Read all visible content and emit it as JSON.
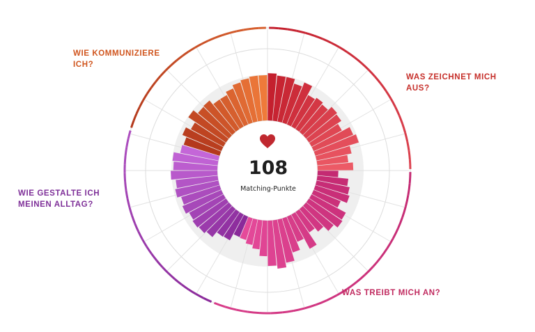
{
  "center": {
    "score": "108",
    "score_label": "Matching-Punkte",
    "icon": "heart-icon",
    "icon_color": "#c0282f"
  },
  "categories": [
    {
      "label": "WAS ZEICHNET MICH AUS?",
      "color": "#c62f2a"
    },
    {
      "label": "WAS TREIBT MICH AN?",
      "color": "#c02a5f"
    },
    {
      "label": "WIE GESTALTE ICH MEINEN ALLTAG?",
      "color": "#7e2f98"
    },
    {
      "label": "WIE KOMMUNIZIERE ICH?",
      "color": "#d0551e"
    }
  ],
  "chart_data": {
    "type": "radial-bar",
    "title": "",
    "grid": true,
    "groups": [
      {
        "name": "WAS ZEICHNET MICH AUS?",
        "color_from": "#c4202e",
        "color_to": "#ec5a66",
        "values": [
          0.73,
          0.7,
          0.7,
          0.63,
          0.7,
          0.55,
          0.58,
          0.55,
          0.62,
          0.6,
          0.53,
          0.66,
          0.7,
          0.55,
          0.48,
          0.55
        ]
      },
      {
        "name": "WAS TREIBT MICH AN?",
        "color_from": "#c42a72",
        "color_to": "#e54a9a",
        "values": [
          0.32,
          0.48,
          0.52,
          0.55,
          0.45,
          0.6,
          0.62,
          0.55,
          0.45,
          0.38,
          0.6,
          0.42,
          0.55,
          0.68,
          0.75,
          0.7,
          0.55,
          0.45,
          0.4,
          0.35
        ]
      },
      {
        "name": "WIE GESTALTE ICH MEINEN ALLTAG?",
        "color_from": "#8a2a9a",
        "color_to": "#c466d8",
        "values": [
          0.34,
          0.45,
          0.46,
          0.56,
          0.6,
          0.62,
          0.6,
          0.65,
          0.62,
          0.68,
          0.65,
          0.72,
          0.68,
          0.7,
          0.6
        ]
      },
      {
        "name": "WIE KOMMUNIZIERE ICH?",
        "color_from": "#b4391c",
        "color_to": "#ef7a3a",
        "values": [
          0.58,
          0.65,
          0.57,
          0.7,
          0.62,
          0.63,
          0.55,
          0.55,
          0.6,
          0.65,
          0.68,
          0.7,
          0.7
        ]
      }
    ]
  }
}
